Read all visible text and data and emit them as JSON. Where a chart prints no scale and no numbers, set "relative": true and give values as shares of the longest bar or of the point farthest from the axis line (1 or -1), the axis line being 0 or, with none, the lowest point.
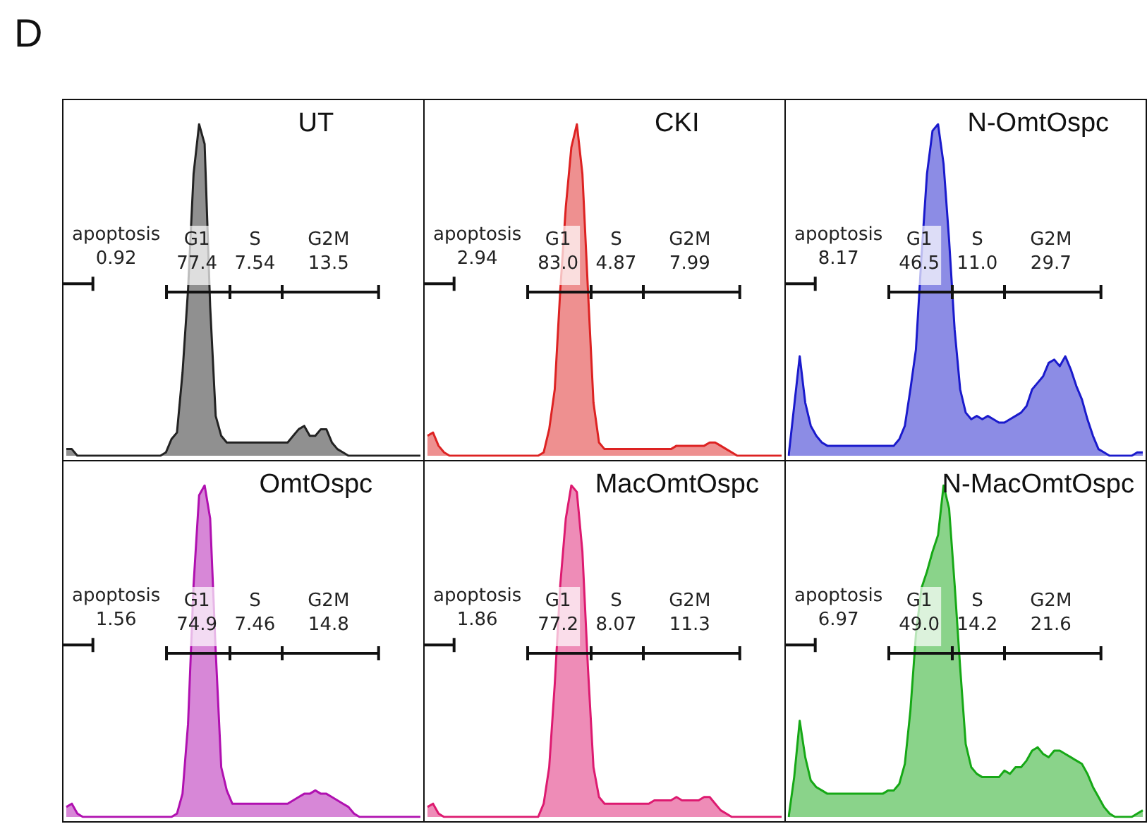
{
  "chart_data": [
    {
      "type": "area",
      "relative": true,
      "title": "D",
      "subtitle": "UT",
      "categories": [
        null,
        null,
        null,
        null,
        null,
        null,
        null,
        null,
        null,
        null,
        null,
        null,
        null,
        null,
        null,
        null,
        null,
        null,
        null,
        null,
        null,
        null,
        null,
        null,
        null,
        null,
        null,
        null,
        null,
        null,
        null,
        null,
        null,
        null,
        null,
        null,
        null,
        null,
        null,
        null,
        null,
        null,
        null,
        null,
        null,
        null,
        null,
        null,
        null,
        null,
        null,
        null,
        null,
        null,
        null,
        null,
        null,
        null,
        null,
        null,
        null,
        null,
        null,
        null,
        null
      ],
      "series": [
        {
          "color": "#222222",
          "values": [
            0.02,
            0.02,
            0,
            0,
            0,
            0,
            0,
            0,
            0,
            0,
            0,
            0,
            0,
            0,
            0,
            0,
            0,
            0,
            0.01,
            0.05,
            0.07,
            0.25,
            0.5,
            0.85,
            1,
            0.94,
            0.45,
            0.12,
            0.06,
            0.04,
            0.04,
            0.04,
            0.04,
            0.04,
            0.04,
            0.04,
            0.04,
            0.04,
            0.04,
            0.04,
            0.04,
            0.06,
            0.08,
            0.09,
            0.06,
            0.06,
            0.08,
            0.08,
            0.04,
            0.02,
            0.01,
            0,
            0,
            0,
            0,
            0,
            0,
            0,
            0,
            0,
            0,
            0,
            0,
            0,
            0
          ]
        }
      ],
      "annotations": [
        "apoptosis",
        "0.92",
        "G1",
        "77.4",
        "S",
        "7.54",
        "G2M",
        "13.5"
      ]
    },
    {
      "type": "area",
      "relative": true,
      "subtitle": "CKI",
      "categories": [
        null,
        null,
        null,
        null,
        null,
        null,
        null,
        null,
        null,
        null,
        null,
        null,
        null,
        null,
        null,
        null,
        null,
        null,
        null,
        null,
        null,
        null,
        null,
        null,
        null,
        null,
        null,
        null,
        null,
        null,
        null,
        null,
        null,
        null,
        null,
        null,
        null,
        null,
        null,
        null,
        null,
        null,
        null,
        null,
        null,
        null,
        null,
        null,
        null,
        null,
        null,
        null,
        null,
        null,
        null,
        null,
        null,
        null,
        null,
        null,
        null,
        null,
        null,
        null,
        null
      ],
      "series": [
        {
          "color": "#dd2222",
          "values": [
            0.06,
            0.07,
            0.03,
            0.01,
            0,
            0,
            0,
            0,
            0,
            0,
            0,
            0,
            0,
            0,
            0,
            0,
            0,
            0,
            0,
            0,
            0,
            0.01,
            0.08,
            0.2,
            0.5,
            0.75,
            0.93,
            1,
            0.85,
            0.5,
            0.16,
            0.04,
            0.02,
            0.02,
            0.02,
            0.02,
            0.02,
            0.02,
            0.02,
            0.02,
            0.02,
            0.02,
            0.02,
            0.02,
            0.02,
            0.03,
            0.03,
            0.03,
            0.03,
            0.03,
            0.03,
            0.04,
            0.04,
            0.03,
            0.02,
            0.01,
            0,
            0,
            0,
            0,
            0,
            0,
            0,
            0,
            0
          ]
        }
      ],
      "annotations": [
        "apoptosis",
        "2.94",
        "G1",
        "83.0",
        "S",
        "4.87",
        "G2M",
        "7.99"
      ]
    },
    {
      "type": "area",
      "relative": true,
      "subtitle": "N-OmtOspc",
      "categories": [
        null,
        null,
        null,
        null,
        null,
        null,
        null,
        null,
        null,
        null,
        null,
        null,
        null,
        null,
        null,
        null,
        null,
        null,
        null,
        null,
        null,
        null,
        null,
        null,
        null,
        null,
        null,
        null,
        null,
        null,
        null,
        null,
        null,
        null,
        null,
        null,
        null,
        null,
        null,
        null,
        null,
        null,
        null,
        null,
        null,
        null,
        null,
        null,
        null,
        null,
        null,
        null,
        null,
        null,
        null,
        null,
        null,
        null,
        null,
        null,
        null,
        null,
        null,
        null,
        null
      ],
      "series": [
        {
          "color": "#1a1acc",
          "values": [
            0,
            0.15,
            0.3,
            0.16,
            0.09,
            0.06,
            0.04,
            0.03,
            0.03,
            0.03,
            0.03,
            0.03,
            0.03,
            0.03,
            0.03,
            0.03,
            0.03,
            0.03,
            0.03,
            0.03,
            0.05,
            0.09,
            0.2,
            0.32,
            0.6,
            0.85,
            0.98,
            1,
            0.88,
            0.65,
            0.38,
            0.2,
            0.13,
            0.11,
            0.12,
            0.11,
            0.12,
            0.11,
            0.1,
            0.1,
            0.11,
            0.12,
            0.13,
            0.15,
            0.2,
            0.22,
            0.24,
            0.28,
            0.29,
            0.27,
            0.3,
            0.26,
            0.21,
            0.17,
            0.11,
            0.06,
            0.02,
            0.01,
            0,
            0,
            0,
            0,
            0,
            0.01,
            0.01
          ]
        }
      ],
      "annotations": [
        "apoptosis",
        "8.17",
        "G1",
        "46.5",
        "S",
        "11.0",
        "G2M",
        "29.7"
      ]
    },
    {
      "type": "area",
      "relative": true,
      "subtitle": "OmtOspc",
      "categories": [
        null,
        null,
        null,
        null,
        null,
        null,
        null,
        null,
        null,
        null,
        null,
        null,
        null,
        null,
        null,
        null,
        null,
        null,
        null,
        null,
        null,
        null,
        null,
        null,
        null,
        null,
        null,
        null,
        null,
        null,
        null,
        null,
        null,
        null,
        null,
        null,
        null,
        null,
        null,
        null,
        null,
        null,
        null,
        null,
        null,
        null,
        null,
        null,
        null,
        null,
        null,
        null,
        null,
        null,
        null,
        null,
        null,
        null,
        null,
        null,
        null,
        null,
        null,
        null,
        null
      ],
      "series": [
        {
          "color": "#b010b0",
          "values": [
            0.03,
            0.04,
            0.01,
            0,
            0,
            0,
            0,
            0,
            0,
            0,
            0,
            0,
            0,
            0,
            0,
            0,
            0,
            0,
            0,
            0,
            0.01,
            0.07,
            0.28,
            0.7,
            0.97,
            1,
            0.9,
            0.5,
            0.15,
            0.08,
            0.04,
            0.04,
            0.04,
            0.04,
            0.04,
            0.04,
            0.04,
            0.04,
            0.04,
            0.04,
            0.04,
            0.05,
            0.06,
            0.07,
            0.07,
            0.08,
            0.07,
            0.07,
            0.06,
            0.05,
            0.04,
            0.03,
            0.01,
            0,
            0,
            0,
            0,
            0,
            0,
            0,
            0,
            0,
            0,
            0,
            0
          ]
        }
      ],
      "annotations": [
        "apoptosis",
        "1.56",
        "G1",
        "74.9",
        "S",
        "7.46",
        "G2M",
        "14.8"
      ]
    },
    {
      "type": "area",
      "relative": true,
      "subtitle": "MacOmtOspc",
      "categories": [
        null,
        null,
        null,
        null,
        null,
        null,
        null,
        null,
        null,
        null,
        null,
        null,
        null,
        null,
        null,
        null,
        null,
        null,
        null,
        null,
        null,
        null,
        null,
        null,
        null,
        null,
        null,
        null,
        null,
        null,
        null,
        null,
        null,
        null,
        null,
        null,
        null,
        null,
        null,
        null,
        null,
        null,
        null,
        null,
        null,
        null,
        null,
        null,
        null,
        null,
        null,
        null,
        null,
        null,
        null,
        null,
        null,
        null,
        null,
        null,
        null,
        null,
        null,
        null,
        null
      ],
      "series": [
        {
          "color": "#dd1a70",
          "values": [
            0.03,
            0.04,
            0.01,
            0,
            0,
            0,
            0,
            0,
            0,
            0,
            0,
            0,
            0,
            0,
            0,
            0,
            0,
            0,
            0,
            0,
            0,
            0.04,
            0.15,
            0.4,
            0.7,
            0.9,
            1,
            0.98,
            0.8,
            0.45,
            0.15,
            0.06,
            0.04,
            0.04,
            0.04,
            0.04,
            0.04,
            0.04,
            0.04,
            0.04,
            0.04,
            0.05,
            0.05,
            0.05,
            0.05,
            0.06,
            0.05,
            0.05,
            0.05,
            0.05,
            0.06,
            0.06,
            0.04,
            0.02,
            0.01,
            0,
            0,
            0,
            0,
            0,
            0,
            0,
            0,
            0,
            0
          ]
        }
      ],
      "annotations": [
        "apoptosis",
        "1.86",
        "G1",
        "77.2",
        "S",
        "8.07",
        "G2M",
        "11.3"
      ]
    },
    {
      "type": "area",
      "relative": true,
      "subtitle": "N-MacOmtOspc",
      "categories": [
        null,
        null,
        null,
        null,
        null,
        null,
        null,
        null,
        null,
        null,
        null,
        null,
        null,
        null,
        null,
        null,
        null,
        null,
        null,
        null,
        null,
        null,
        null,
        null,
        null,
        null,
        null,
        null,
        null,
        null,
        null,
        null,
        null,
        null,
        null,
        null,
        null,
        null,
        null,
        null,
        null,
        null,
        null,
        null,
        null,
        null,
        null,
        null,
        null,
        null,
        null,
        null,
        null,
        null,
        null,
        null,
        null,
        null,
        null,
        null,
        null,
        null,
        null,
        null,
        null
      ],
      "series": [
        {
          "color": "#16a816",
          "values": [
            0,
            0.12,
            0.29,
            0.18,
            0.11,
            0.09,
            0.08,
            0.07,
            0.07,
            0.07,
            0.07,
            0.07,
            0.07,
            0.07,
            0.07,
            0.07,
            0.07,
            0.07,
            0.08,
            0.08,
            0.1,
            0.16,
            0.32,
            0.55,
            0.69,
            0.74,
            0.8,
            0.85,
            1,
            0.93,
            0.7,
            0.45,
            0.22,
            0.15,
            0.13,
            0.12,
            0.12,
            0.12,
            0.12,
            0.14,
            0.13,
            0.15,
            0.15,
            0.17,
            0.2,
            0.21,
            0.19,
            0.18,
            0.2,
            0.2,
            0.19,
            0.18,
            0.17,
            0.16,
            0.13,
            0.09,
            0.06,
            0.03,
            0.01,
            0,
            0,
            0,
            0,
            0.01,
            0.02
          ]
        }
      ],
      "annotations": [
        "apoptosis",
        "6.97",
        "G1",
        "49.0",
        "S",
        "14.2",
        "G2M",
        "21.6"
      ]
    }
  ]
}
